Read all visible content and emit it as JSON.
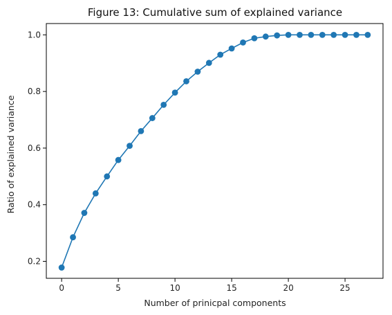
{
  "chart_data": {
    "type": "line",
    "title": "Figure 13: Cumulative sum of explained variance",
    "xlabel": "Number of prinicpal components",
    "ylabel": "Ratio of explained variance",
    "xlim": [
      -1.35,
      28.35
    ],
    "ylim": [
      0.14,
      1.04
    ],
    "xticks": [
      0,
      5,
      10,
      15,
      20,
      25
    ],
    "xtick_labels": [
      "0",
      "5",
      "10",
      "15",
      "20",
      "25"
    ],
    "yticks": [
      0.2,
      0.4,
      0.6,
      0.8,
      1.0
    ],
    "ytick_labels": [
      "0.2",
      "0.4",
      "0.6",
      "0.8",
      "1.0"
    ],
    "grid": false,
    "marker": "circle",
    "color": "#1f77b4",
    "series": [
      {
        "x": [
          0,
          1,
          2,
          3,
          4,
          5,
          6,
          7,
          8,
          9,
          10,
          11,
          12,
          13,
          14,
          15,
          16,
          17,
          18,
          19,
          20,
          21,
          22,
          23,
          24,
          25,
          26,
          27
        ],
        "values": [
          0.178,
          0.285,
          0.371,
          0.44,
          0.5,
          0.558,
          0.608,
          0.66,
          0.706,
          0.753,
          0.796,
          0.836,
          0.87,
          0.901,
          0.93,
          0.952,
          0.973,
          0.988,
          0.994,
          0.998,
          1.0,
          1.0,
          1.0,
          1.0,
          1.0,
          1.0,
          1.0,
          1.0
        ]
      }
    ]
  }
}
